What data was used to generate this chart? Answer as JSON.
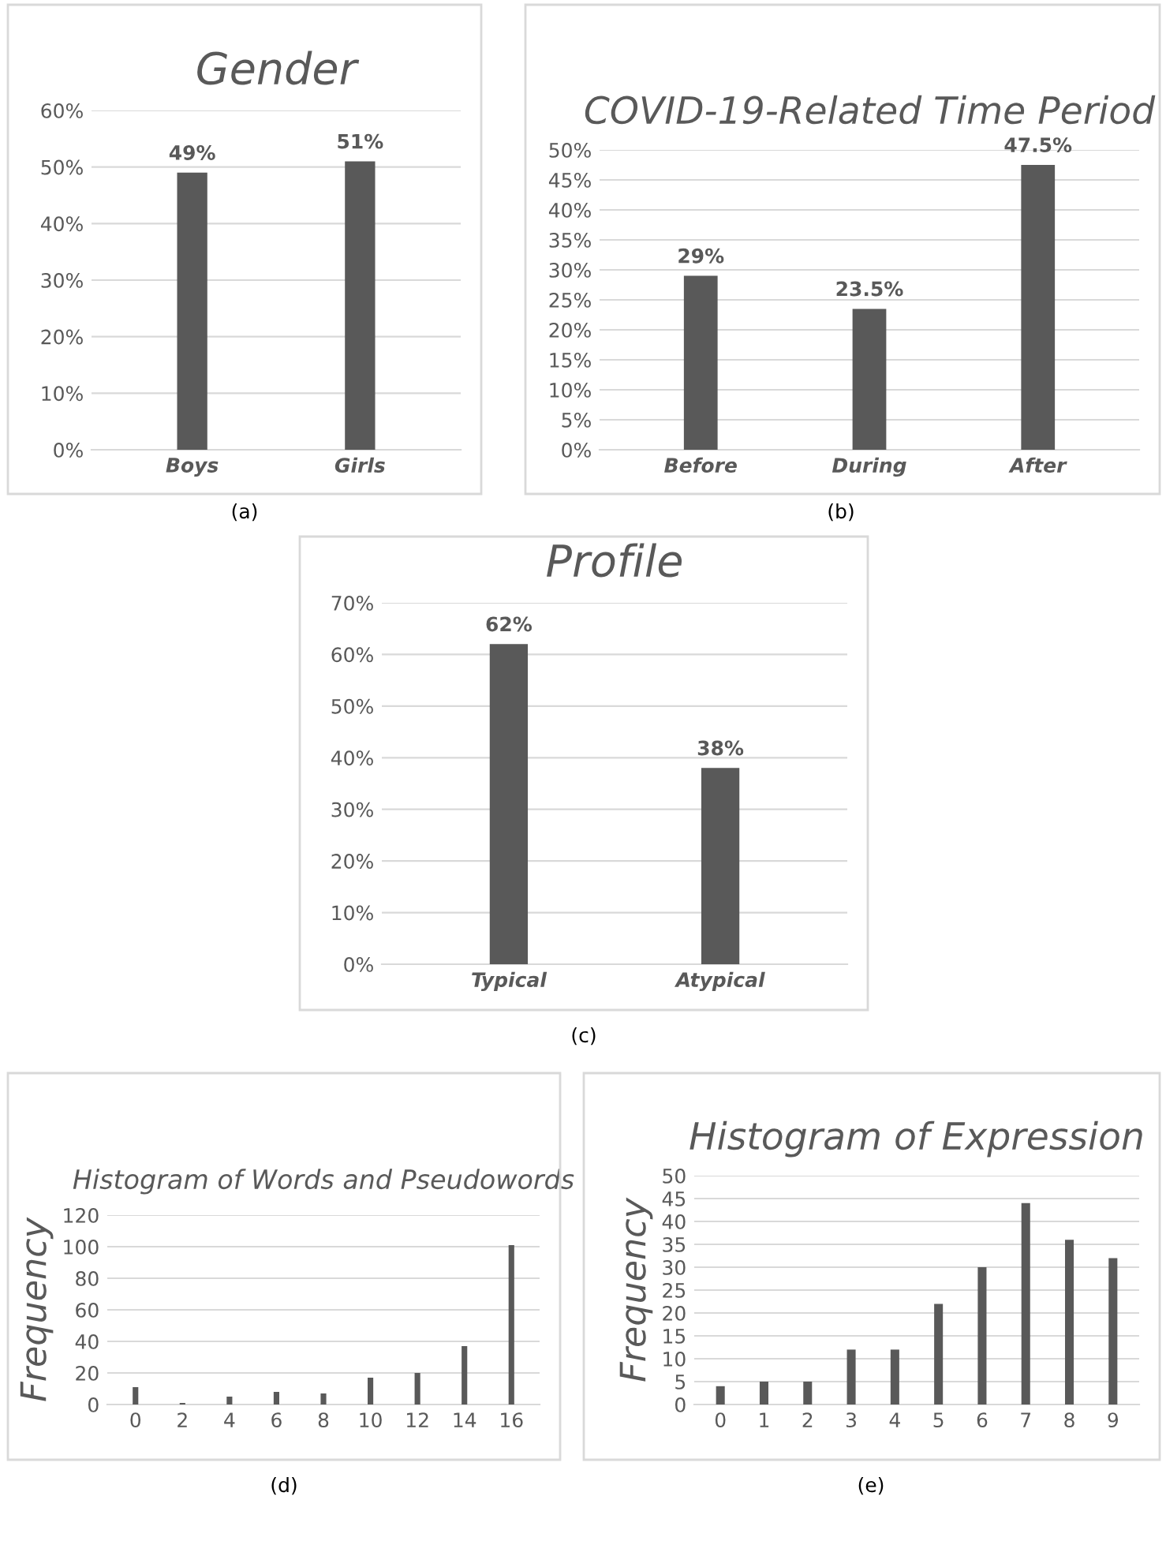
{
  "chart_data": [
    {
      "type": "bar",
      "title": "Gender",
      "categories": [
        "Boys",
        "Girls"
      ],
      "values": [
        49,
        51
      ],
      "color": "#595959",
      "value_labels": [
        "49%",
        "51%"
      ],
      "ylim": [
        0,
        60
      ],
      "yticks": [
        {
          "value": 0,
          "label": "0%"
        },
        {
          "value": 10,
          "label": "10%"
        },
        {
          "value": 20,
          "label": "20%"
        },
        {
          "value": 30,
          "label": "30%"
        },
        {
          "value": 40,
          "label": "40%"
        },
        {
          "value": 50,
          "label": "50%"
        },
        {
          "value": 60,
          "label": "60%"
        }
      ],
      "grid": "y",
      "annotations": [
        "(a)"
      ]
    },
    {
      "type": "bar",
      "title": "COVID-19-Related Time Period",
      "categories": [
        "Before",
        "During",
        "After"
      ],
      "values": [
        29,
        23.5,
        47.5
      ],
      "color": "#595959",
      "value_labels": [
        "29%",
        "23.5%",
        "47.5%"
      ],
      "ylim": [
        0,
        50
      ],
      "yticks": [
        {
          "value": 0,
          "label": "0%"
        },
        {
          "value": 5,
          "label": "5%"
        },
        {
          "value": 10,
          "label": "10%"
        },
        {
          "value": 15,
          "label": "15%"
        },
        {
          "value": 20,
          "label": "20%"
        },
        {
          "value": 25,
          "label": "25%"
        },
        {
          "value": 30,
          "label": "30%"
        },
        {
          "value": 35,
          "label": "35%"
        },
        {
          "value": 40,
          "label": "40%"
        },
        {
          "value": 45,
          "label": "45%"
        },
        {
          "value": 50,
          "label": "50%"
        }
      ],
      "grid": "y",
      "annotations": [
        "(b)"
      ]
    },
    {
      "type": "bar",
      "title": "Profile",
      "categories": [
        "Typical",
        "Atypical"
      ],
      "values": [
        62,
        38
      ],
      "color": "#595959",
      "value_labels": [
        "62%",
        "38%"
      ],
      "ylim": [
        0,
        70
      ],
      "yticks": [
        {
          "value": 0,
          "label": "0%"
        },
        {
          "value": 10,
          "label": "10%"
        },
        {
          "value": 20,
          "label": "20%"
        },
        {
          "value": 30,
          "label": "30%"
        },
        {
          "value": 40,
          "label": "40%"
        },
        {
          "value": 50,
          "label": "50%"
        },
        {
          "value": 60,
          "label": "60%"
        },
        {
          "value": 70,
          "label": "70%"
        }
      ],
      "grid": "y",
      "annotations": [
        "(c)"
      ]
    },
    {
      "type": "bar",
      "title": "Histogram of Words and Pseudowords",
      "ylabel": "Frequency",
      "categories": [
        "0",
        "2",
        "4",
        "6",
        "8",
        "10",
        "12",
        "14",
        "16"
      ],
      "values": [
        11,
        1,
        5,
        8,
        7,
        17,
        20,
        37,
        101
      ],
      "color": "#595959",
      "ylim": [
        0,
        120
      ],
      "yticks": [
        0,
        20,
        40,
        60,
        80,
        100,
        120
      ],
      "grid": "y",
      "annotations": [
        "(d)"
      ]
    },
    {
      "type": "bar",
      "title": "Histogram of Expression",
      "ylabel": "Frequency",
      "categories": [
        "0",
        "1",
        "2",
        "3",
        "4",
        "5",
        "6",
        "7",
        "8",
        "9"
      ],
      "values": [
        4,
        5,
        5,
        12,
        12,
        22,
        30,
        44,
        36,
        32
      ],
      "color": "#595959",
      "ylim": [
        0,
        50
      ],
      "yticks": [
        0,
        5,
        10,
        15,
        20,
        25,
        30,
        35,
        40,
        45,
        50
      ],
      "grid": "y",
      "annotations": [
        "(e)"
      ]
    }
  ]
}
